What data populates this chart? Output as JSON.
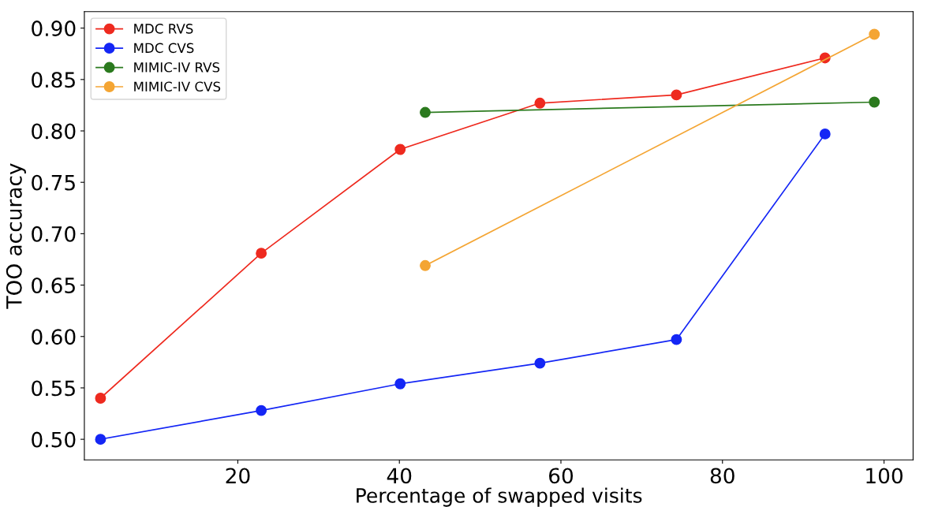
{
  "chart_data": {
    "type": "line",
    "xlabel": "Percentage of swapped visits",
    "ylabel": "TOO accuracy",
    "xlim": [
      1,
      103.6
    ],
    "xticks": [
      20,
      40,
      60,
      80,
      100
    ],
    "ylim": [
      0.48,
      0.916
    ],
    "yticks": [
      {
        "value": 0.5,
        "label": "0.50"
      },
      0.55,
      {
        "value": 0.6,
        "label": "0.60"
      },
      0.65,
      {
        "value": 0.7,
        "label": "0.70"
      },
      0.75,
      {
        "value": 0.8,
        "label": "0.80"
      },
      0.85,
      {
        "value": 0.9,
        "label": "0.90"
      }
    ],
    "marker": "circle",
    "legend": "top left",
    "grid": false,
    "series": [
      {
        "name": "MDC RVS",
        "color": "#ee2a1f",
        "x": [
          3.0,
          22.9,
          40.1,
          57.4,
          74.3,
          92.7
        ],
        "values": [
          0.54,
          0.681,
          0.782,
          0.827,
          0.835,
          0.871
        ]
      },
      {
        "name": "MDC CVS",
        "color": "#1426f5",
        "x": [
          3.0,
          22.9,
          40.1,
          57.4,
          74.3,
          92.7
        ],
        "values": [
          0.5,
          0.528,
          0.554,
          0.574,
          0.597,
          0.797
        ]
      },
      {
        "name": "MIMIC-IV RVS",
        "color": "#2b7a1e",
        "x": [
          43.2,
          98.8
        ],
        "values": [
          0.818,
          0.828
        ]
      },
      {
        "name": "MIMIC-IV CVS",
        "color": "#f4a533",
        "x": [
          43.2,
          98.8
        ],
        "values": [
          0.669,
          0.894
        ]
      }
    ]
  }
}
